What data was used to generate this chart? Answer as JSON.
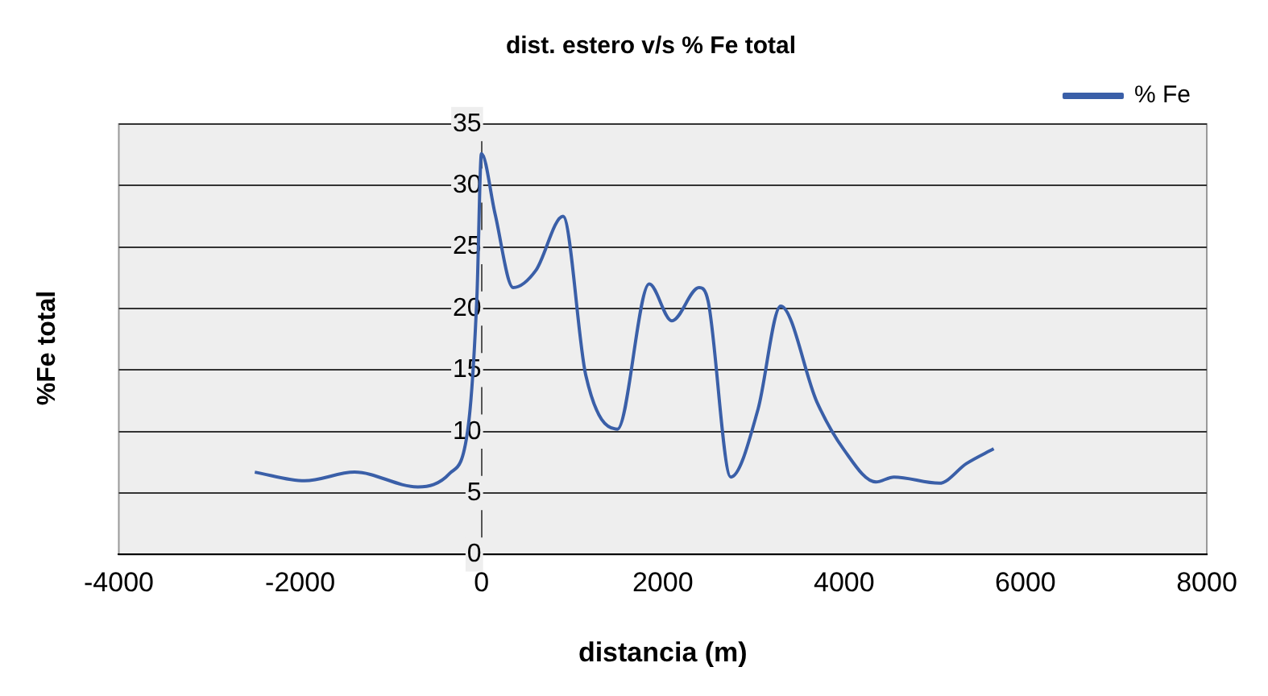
{
  "chart_data": {
    "type": "line",
    "title": "dist. estero v/s % Fe total",
    "xlabel": "distancia (m)",
    "ylabel": "%Fe total",
    "x": [
      -2500,
      -1950,
      -1400,
      -700,
      -350,
      -150,
      -50,
      0,
      150,
      350,
      600,
      900,
      1150,
      1500,
      1850,
      2100,
      2400,
      2500,
      2750,
      3050,
      3300,
      3700,
      4000,
      4350,
      4550,
      5050,
      5350,
      5650
    ],
    "series": [
      {
        "name": "% Fe",
        "color": "#3a5fa8",
        "values": [
          6.7,
          6.0,
          6.7,
          5.5,
          6.6,
          10.2,
          21,
          32.6,
          27.7,
          21.7,
          23.1,
          27.5,
          14.6,
          10.2,
          22,
          19.0,
          21.7,
          20.6,
          6.3,
          11.8,
          20.2,
          12.4,
          8.5,
          5.9,
          6.3,
          5.8,
          7.4,
          8.6
        ]
      }
    ],
    "xlim": [
      -4000,
      8000
    ],
    "xticks": [
      -4000,
      -2000,
      0,
      2000,
      4000,
      6000,
      8000
    ],
    "ylim": [
      0,
      35
    ],
    "yticks": [
      0,
      5,
      10,
      15,
      20,
      25,
      30,
      35
    ],
    "grid": "y",
    "legend": "top right",
    "marker": "none",
    "line_style": "solid"
  }
}
